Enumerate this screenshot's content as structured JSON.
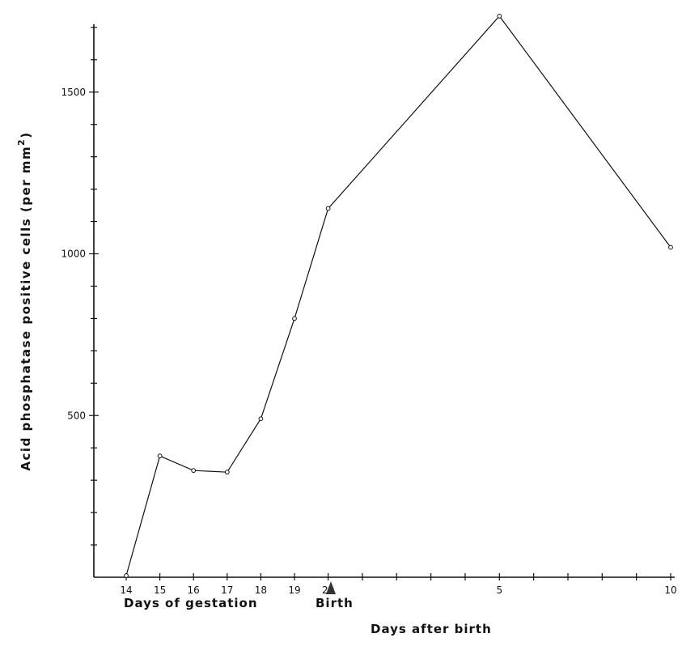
{
  "chart_data": {
    "type": "line",
    "ylabel": "Acid phosphatase positive cells (per mm",
    "ylabel_superscript": "2",
    "ylabel_close": ")",
    "ylim": [
      0,
      1700
    ],
    "y_ticks": [
      500,
      1000,
      1500
    ],
    "gestation_ticks": [
      "14",
      "15",
      "16",
      "17",
      "18",
      "19",
      "20"
    ],
    "after_birth_ticks": [
      "5",
      "10"
    ],
    "gestation_caption": "Days of gestation",
    "birth_label": "Birth",
    "after_birth_caption": "Days after birth",
    "series": [
      {
        "points": [
          {
            "x": "14",
            "y": 5
          },
          {
            "x": "15",
            "y": 375
          },
          {
            "x": "16",
            "y": 330
          },
          {
            "x": "17",
            "y": 325
          },
          {
            "x": "18",
            "y": 490
          },
          {
            "x": "19",
            "y": 800
          },
          {
            "x": "20",
            "y": 1140
          },
          {
            "x": "5",
            "y": 1735
          },
          {
            "x": "10",
            "y": 1020
          }
        ]
      }
    ]
  }
}
